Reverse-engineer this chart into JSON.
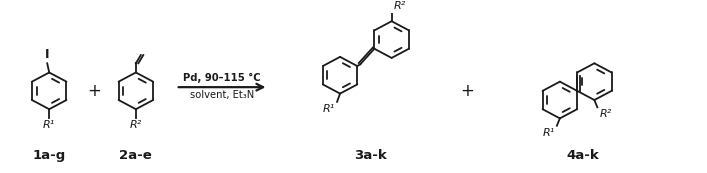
{
  "background_color": "#ffffff",
  "figsize": [
    7.07,
    1.73
  ],
  "dpi": 100,
  "label_1ag": "1a-g",
  "label_2ae": "2a-e",
  "label_3ak": "3a-k",
  "label_4ak": "4a-k",
  "arrow_text_line1": "Pd, 90–115 °C",
  "arrow_text_line2": "solvent, Et₃N",
  "R1_label": "R¹",
  "R2_label": "R²",
  "I_label": "I",
  "label_fontsize": 9.5,
  "chem_color": "#1a1a1a"
}
